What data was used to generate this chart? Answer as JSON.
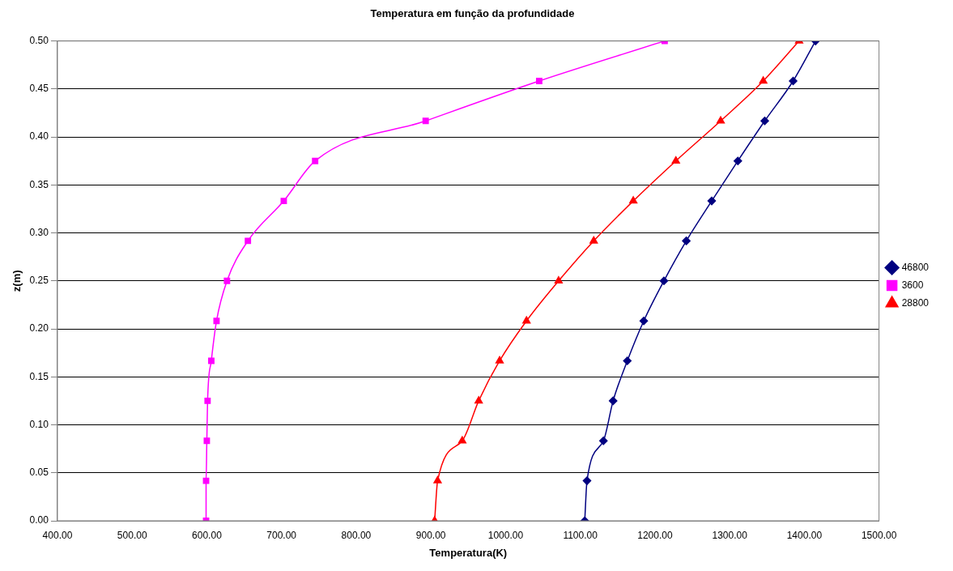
{
  "chart_data": {
    "type": "line",
    "title": "Temperatura em função da profundidade",
    "xlabel": "Temperatura(K)",
    "ylabel": "z(m)",
    "series": [
      {
        "name": "46800",
        "color": "#000080",
        "marker": "diamond",
        "x": [
          1106,
          1109,
          1131,
          1144,
          1163,
          1185,
          1212,
          1242,
          1276,
          1311,
          1347,
          1385,
          1415
        ],
        "values": [
          0,
          0.0417,
          0.0833,
          0.125,
          0.1667,
          0.2083,
          0.25,
          0.2917,
          0.3333,
          0.375,
          0.4167,
          0.4583,
          0.5
        ]
      },
      {
        "name": "3600",
        "color": "#ff00ff",
        "marker": "square",
        "x": [
          599,
          599,
          600,
          601,
          606,
          613,
          627,
          655,
          703,
          745,
          893,
          1045,
          1213
        ],
        "values": [
          0,
          0.0417,
          0.0833,
          0.125,
          0.1667,
          0.2083,
          0.25,
          0.2917,
          0.3333,
          0.375,
          0.4167,
          0.4583,
          0.5
        ]
      },
      {
        "name": "28800",
        "color": "#ff0000",
        "marker": "triangle",
        "x": [
          905,
          909,
          942,
          964,
          992,
          1028,
          1071,
          1118,
          1171,
          1228,
          1288,
          1345,
          1393
        ],
        "values": [
          0,
          0.0417,
          0.0833,
          0.125,
          0.1667,
          0.2083,
          0.25,
          0.2917,
          0.3333,
          0.375,
          0.4167,
          0.4583,
          0.5
        ]
      }
    ],
    "xlim": [
      400,
      1500
    ],
    "xticks": [
      {
        "value": 400,
        "label": "400.00"
      },
      {
        "value": 500,
        "label": "500.00"
      },
      {
        "value": 600,
        "label": "600.00"
      },
      {
        "value": 700,
        "label": "700.00"
      },
      {
        "value": 800,
        "label": "800.00"
      },
      {
        "value": 900,
        "label": "900.00"
      },
      {
        "value": 1000,
        "label": "1000.00"
      },
      {
        "value": 1100,
        "label": "1100.00"
      },
      {
        "value": 1200,
        "label": "1200.00"
      },
      {
        "value": 1300,
        "label": "1300.00"
      },
      {
        "value": 1400,
        "label": "1400.00"
      },
      {
        "value": 1500,
        "label": "1500.00"
      }
    ],
    "ylim": [
      0,
      0.5
    ],
    "yticks": [
      {
        "value": 0,
        "label": "0.00"
      },
      {
        "value": 0.05,
        "label": "0.05"
      },
      {
        "value": 0.1,
        "label": "0.10"
      },
      {
        "value": 0.15,
        "label": "0.15"
      },
      {
        "value": 0.2,
        "label": "0.20"
      },
      {
        "value": 0.25,
        "label": "0.25"
      },
      {
        "value": 0.3,
        "label": "0.30"
      },
      {
        "value": 0.35,
        "label": "0.35"
      },
      {
        "value": 0.4,
        "label": "0.40"
      },
      {
        "value": 0.45,
        "label": "0.45"
      },
      {
        "value": 0.5,
        "label": "0.50"
      }
    ],
    "grid": "y",
    "legend": "right",
    "line_style": "solid"
  }
}
